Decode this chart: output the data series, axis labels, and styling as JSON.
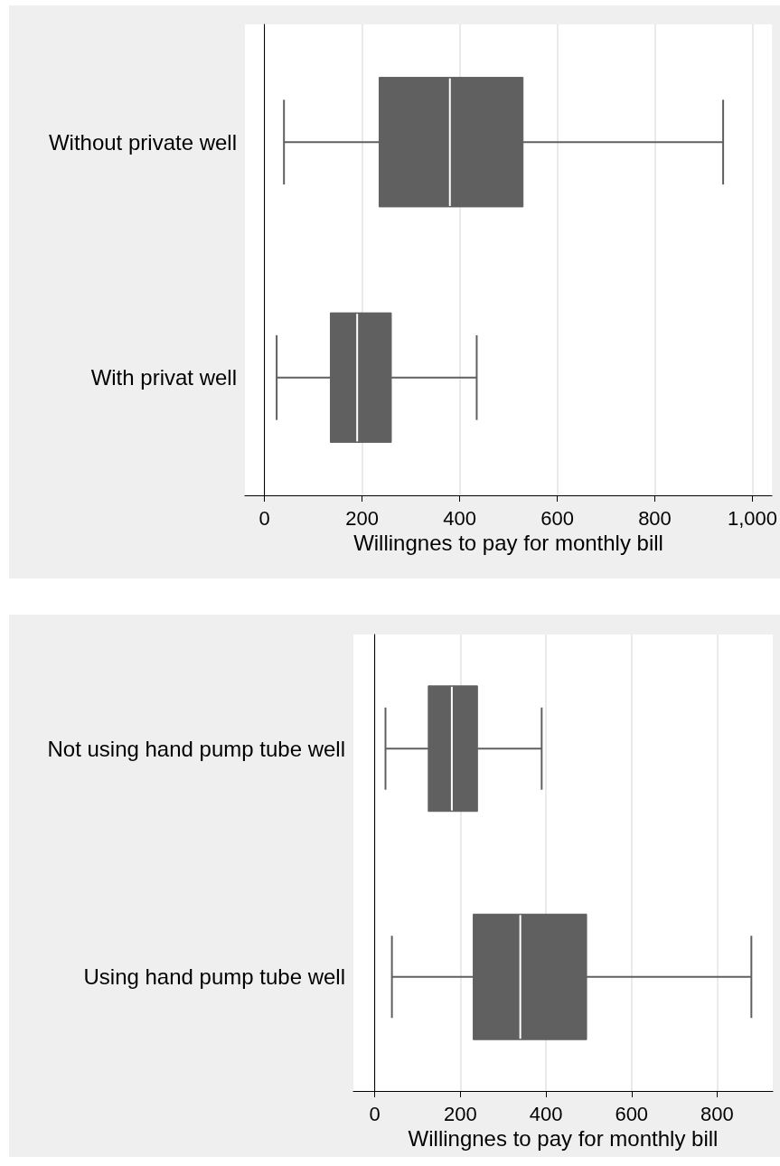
{
  "chart_data": [
    {
      "type": "box",
      "orientation": "horizontal",
      "categories": [
        "Without private well",
        "With privat well"
      ],
      "xlabel": "Willingnes to pay for monthly bill",
      "xlim": [
        -40,
        1040
      ],
      "xticks": [
        0,
        200,
        400,
        600,
        800,
        {
          "value": 1000,
          "label": "1,000"
        }
      ],
      "grid": "x",
      "series": [
        {
          "color": "#606060",
          "boxes": [
            {
              "low": 40,
              "q1": 235,
              "median": 380,
              "q3": 530,
              "high": 940
            },
            {
              "low": 25,
              "q1": 135,
              "median": 190,
              "q3": 260,
              "high": 435
            }
          ]
        }
      ]
    },
    {
      "type": "box",
      "orientation": "horizontal",
      "categories": [
        "Not using hand pump tube well",
        "Using hand pump tube well"
      ],
      "xlabel": "Willingnes to pay for monthly bill",
      "xlim": [
        -50,
        930
      ],
      "xticks": [
        0,
        200,
        400,
        600,
        800
      ],
      "grid": "x",
      "series": [
        {
          "color": "#606060",
          "boxes": [
            {
              "low": 25,
              "q1": 125,
              "median": 180,
              "q3": 240,
              "high": 390
            },
            {
              "low": 40,
              "q1": 230,
              "median": 340,
              "q3": 495,
              "high": 880
            }
          ]
        }
      ]
    }
  ]
}
